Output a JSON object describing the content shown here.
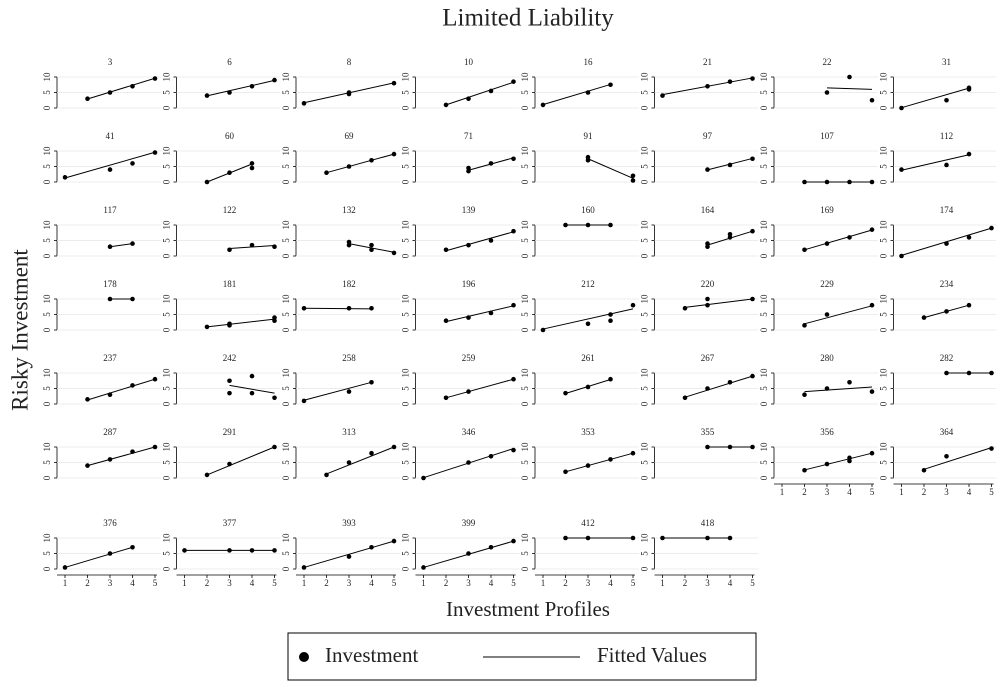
{
  "chart_data": {
    "type": "scatter",
    "title": "Limited Liability",
    "xlabel": "Investment Profiles",
    "ylabel": "Risky Investment",
    "legend": {
      "points": "Investment",
      "line": "Fitted Values"
    },
    "point_color": "#000000",
    "line_color": "#000000",
    "grid": true,
    "xlim": [
      1,
      5
    ],
    "xticks": [
      1,
      2,
      3,
      4,
      5
    ],
    "ylim": [
      0,
      10
    ],
    "yticks": [
      0,
      5,
      10
    ],
    "panels": [
      {
        "title": "3",
        "x": [
          2,
          3,
          4,
          5
        ],
        "values": [
          3,
          5,
          7,
          9.5
        ],
        "fit_x": [
          2,
          5
        ],
        "fit": [
          2.9,
          9.6
        ]
      },
      {
        "title": "6",
        "x": [
          2,
          3,
          4,
          5
        ],
        "values": [
          4,
          5,
          7,
          9
        ],
        "fit_x": [
          2,
          5
        ],
        "fit": [
          3.9,
          8.9
        ]
      },
      {
        "title": "8",
        "x": [
          1,
          3,
          3,
          5
        ],
        "values": [
          1.5,
          4.5,
          5,
          8
        ],
        "fit_x": [
          1,
          5
        ],
        "fit": [
          1.7,
          8.1
        ]
      },
      {
        "title": "10",
        "x": [
          2,
          3,
          4,
          5
        ],
        "values": [
          1,
          3,
          5.5,
          8.5
        ],
        "fit_x": [
          2,
          5
        ],
        "fit": [
          1,
          8.3
        ]
      },
      {
        "title": "16",
        "x": [
          1,
          3,
          4
        ],
        "values": [
          1,
          5,
          7.5
        ],
        "fit_x": [
          1,
          4
        ],
        "fit": [
          1.1,
          7.6
        ]
      },
      {
        "title": "21",
        "x": [
          1,
          3,
          4,
          5
        ],
        "values": [
          4,
          7,
          8.5,
          9.5
        ],
        "fit_x": [
          1,
          5
        ],
        "fit": [
          4.3,
          9.7
        ]
      },
      {
        "title": "22",
        "x": [
          3,
          4,
          5
        ],
        "values": [
          5,
          10,
          2.5
        ],
        "fit_x": [
          3,
          5
        ],
        "fit": [
          6.5,
          6
        ]
      },
      {
        "title": "31",
        "x": [
          1,
          3,
          4,
          4
        ],
        "values": [
          0,
          2.5,
          6,
          6.5
        ],
        "fit_x": [
          1,
          4
        ],
        "fit": [
          0.1,
          6.4
        ]
      },
      {
        "title": "41",
        "x": [
          1,
          3,
          4,
          5
        ],
        "values": [
          1.5,
          4,
          6,
          9.5
        ],
        "fit_x": [
          1,
          5
        ],
        "fit": [
          1.3,
          9.6
        ]
      },
      {
        "title": "60",
        "x": [
          2,
          3,
          4,
          4
        ],
        "values": [
          0,
          3,
          4.5,
          6
        ],
        "fit_x": [
          2,
          4
        ],
        "fit": [
          0,
          5.8
        ]
      },
      {
        "title": "69",
        "x": [
          2,
          3,
          4,
          5
        ],
        "values": [
          3,
          5,
          7,
          9
        ],
        "fit_x": [
          2,
          5
        ],
        "fit": [
          3,
          9
        ]
      },
      {
        "title": "71",
        "x": [
          3,
          3,
          4,
          5
        ],
        "values": [
          3.5,
          4.5,
          6,
          7.5
        ],
        "fit_x": [
          3,
          5
        ],
        "fit": [
          3.8,
          7.8
        ]
      },
      {
        "title": "91",
        "x": [
          3,
          3,
          5,
          5
        ],
        "values": [
          8,
          7,
          2,
          0.5
        ],
        "fit_x": [
          3,
          5
        ],
        "fit": [
          7.5,
          1.2
        ]
      },
      {
        "title": "97",
        "x": [
          3,
          4,
          5
        ],
        "values": [
          4,
          5.5,
          7.5
        ],
        "fit_x": [
          3,
          5
        ],
        "fit": [
          3.9,
          7.6
        ]
      },
      {
        "title": "107",
        "x": [
          2,
          3,
          4,
          5
        ],
        "values": [
          0,
          0,
          0,
          0
        ],
        "fit_x": [
          2,
          5
        ],
        "fit": [
          0,
          0
        ]
      },
      {
        "title": "112",
        "x": [
          1,
          3,
          4
        ],
        "values": [
          4,
          5.5,
          9
        ],
        "fit_x": [
          1,
          4
        ],
        "fit": [
          3.8,
          8.8
        ]
      },
      {
        "title": "117",
        "x": [
          3,
          4
        ],
        "values": [
          3,
          4
        ],
        "fit_x": [
          3,
          4
        ],
        "fit": [
          3,
          4
        ]
      },
      {
        "title": "122",
        "x": [
          3,
          4,
          5
        ],
        "values": [
          2,
          3.5,
          3
        ],
        "fit_x": [
          3,
          5
        ],
        "fit": [
          2.4,
          3.4
        ]
      },
      {
        "title": "132",
        "x": [
          3,
          3,
          4,
          4,
          5
        ],
        "values": [
          3.5,
          4.5,
          3.5,
          2,
          1
        ],
        "fit_x": [
          3,
          5
        ],
        "fit": [
          4,
          1.2
        ]
      },
      {
        "title": "139",
        "x": [
          2,
          3,
          4,
          5
        ],
        "values": [
          2,
          3.5,
          5,
          8
        ],
        "fit_x": [
          2,
          5
        ],
        "fit": [
          1.7,
          7.8
        ]
      },
      {
        "title": "160",
        "x": [
          2,
          3,
          4
        ],
        "values": [
          10,
          10,
          10
        ],
        "fit_x": [
          2,
          4
        ],
        "fit": [
          10,
          10
        ]
      },
      {
        "title": "164",
        "x": [
          3,
          3,
          4,
          4,
          5
        ],
        "values": [
          3,
          4,
          6,
          7,
          8
        ],
        "fit_x": [
          3,
          5
        ],
        "fit": [
          3.5,
          8
        ]
      },
      {
        "title": "169",
        "x": [
          2,
          3,
          4,
          5
        ],
        "values": [
          2,
          4,
          6,
          8.5
        ],
        "fit_x": [
          2,
          5
        ],
        "fit": [
          2,
          8.4
        ]
      },
      {
        "title": "174",
        "x": [
          1,
          3,
          4,
          5
        ],
        "values": [
          0,
          4,
          6,
          9
        ],
        "fit_x": [
          1,
          5
        ],
        "fit": [
          0.2,
          9
        ]
      },
      {
        "title": "178",
        "x": [
          3,
          4
        ],
        "values": [
          10,
          10
        ],
        "fit_x": [
          3,
          4
        ],
        "fit": [
          10,
          10
        ]
      },
      {
        "title": "181",
        "x": [
          2,
          3,
          3,
          5,
          5
        ],
        "values": [
          1,
          1.5,
          2,
          3,
          4
        ],
        "fit_x": [
          2,
          5
        ],
        "fit": [
          1,
          3.5
        ]
      },
      {
        "title": "182",
        "x": [
          1,
          3,
          4
        ],
        "values": [
          7,
          7,
          7
        ],
        "fit_x": [
          1,
          4
        ],
        "fit": [
          7,
          6.8
        ]
      },
      {
        "title": "196",
        "x": [
          2,
          3,
          4,
          5
        ],
        "values": [
          3,
          4,
          5.5,
          8
        ],
        "fit_x": [
          2,
          5
        ],
        "fit": [
          2.7,
          7.8
        ]
      },
      {
        "title": "212",
        "x": [
          1,
          3,
          4,
          4,
          5
        ],
        "values": [
          0,
          2,
          3,
          5,
          8
        ],
        "fit_x": [
          1,
          5
        ],
        "fit": [
          0.3,
          6.8
        ]
      },
      {
        "title": "220",
        "x": [
          2,
          3,
          3,
          5
        ],
        "values": [
          7,
          8,
          10,
          10
        ],
        "fit_x": [
          2,
          5
        ],
        "fit": [
          7.3,
          10
        ]
      },
      {
        "title": "229",
        "x": [
          2,
          3,
          5
        ],
        "values": [
          1.5,
          5,
          8
        ],
        "fit_x": [
          2,
          5
        ],
        "fit": [
          2,
          7.8
        ]
      },
      {
        "title": "234",
        "x": [
          2,
          3,
          4
        ],
        "values": [
          4,
          6,
          8
        ],
        "fit_x": [
          2,
          4
        ],
        "fit": [
          4,
          8
        ]
      },
      {
        "title": "237",
        "x": [
          2,
          3,
          4,
          5
        ],
        "values": [
          1.5,
          3,
          6,
          8
        ],
        "fit_x": [
          2,
          5
        ],
        "fit": [
          1.3,
          8
        ]
      },
      {
        "title": "242",
        "x": [
          3,
          3,
          4,
          4,
          5
        ],
        "values": [
          3.5,
          7.5,
          3.5,
          9,
          2
        ],
        "fit_x": [
          3,
          5
        ],
        "fit": [
          6,
          3.5
        ]
      },
      {
        "title": "258",
        "x": [
          1,
          3,
          4
        ],
        "values": [
          1,
          4,
          7
        ],
        "fit_x": [
          1,
          4
        ],
        "fit": [
          1.2,
          7
        ]
      },
      {
        "title": "259",
        "x": [
          2,
          3,
          5
        ],
        "values": [
          2,
          4,
          8
        ],
        "fit_x": [
          2,
          5
        ],
        "fit": [
          2,
          8
        ]
      },
      {
        "title": "261",
        "x": [
          2,
          3,
          4
        ],
        "values": [
          3.5,
          5.5,
          8
        ],
        "fit_x": [
          2,
          4
        ],
        "fit": [
          3.4,
          7.9
        ]
      },
      {
        "title": "267",
        "x": [
          2,
          3,
          4,
          5
        ],
        "values": [
          2,
          5,
          7,
          9
        ],
        "fit_x": [
          2,
          5
        ],
        "fit": [
          2.2,
          9
        ]
      },
      {
        "title": "280",
        "x": [
          2,
          3,
          4,
          5
        ],
        "values": [
          3,
          5,
          7,
          4
        ],
        "fit_x": [
          2,
          5
        ],
        "fit": [
          4,
          5.5
        ]
      },
      {
        "title": "282",
        "x": [
          3,
          4,
          5
        ],
        "values": [
          10,
          10,
          10
        ],
        "fit_x": [
          3,
          5
        ],
        "fit": [
          10,
          10
        ]
      },
      {
        "title": "287",
        "x": [
          2,
          3,
          4,
          5
        ],
        "values": [
          4,
          6,
          8.5,
          10
        ],
        "fit_x": [
          2,
          5
        ],
        "fit": [
          4,
          10
        ]
      },
      {
        "title": "291",
        "x": [
          2,
          3,
          5
        ],
        "values": [
          1,
          4.5,
          10
        ],
        "fit_x": [
          2,
          5
        ],
        "fit": [
          1,
          10
        ]
      },
      {
        "title": "313",
        "x": [
          2,
          3,
          4,
          5
        ],
        "values": [
          1,
          5,
          8,
          10
        ],
        "fit_x": [
          2,
          5
        ],
        "fit": [
          1.3,
          10
        ]
      },
      {
        "title": "346",
        "x": [
          1,
          3,
          4,
          5
        ],
        "values": [
          0,
          5,
          7,
          9
        ],
        "fit_x": [
          1,
          5
        ],
        "fit": [
          0.1,
          9.5
        ]
      },
      {
        "title": "353",
        "x": [
          2,
          3,
          4,
          5
        ],
        "values": [
          2,
          4,
          6,
          8
        ],
        "fit_x": [
          2,
          5
        ],
        "fit": [
          2,
          8
        ]
      },
      {
        "title": "355",
        "x": [
          3,
          4,
          5
        ],
        "values": [
          10,
          10,
          10
        ],
        "fit_x": [
          3,
          5
        ],
        "fit": [
          10,
          10
        ]
      },
      {
        "title": "356",
        "x": [
          2,
          3,
          4,
          4,
          5
        ],
        "values": [
          2.5,
          4.5,
          5.5,
          6.5,
          8
        ],
        "fit_x": [
          2,
          5
        ],
        "fit": [
          2.6,
          8
        ]
      },
      {
        "title": "364",
        "x": [
          2,
          3,
          5
        ],
        "values": [
          2.5,
          7,
          9.5
        ],
        "fit_x": [
          2,
          5
        ],
        "fit": [
          2.8,
          9.8
        ]
      },
      {
        "title": "376",
        "x": [
          1,
          3,
          4
        ],
        "values": [
          0.5,
          5,
          7
        ],
        "fit_x": [
          1,
          4
        ],
        "fit": [
          0.5,
          7
        ]
      },
      {
        "title": "377",
        "x": [
          1,
          3,
          4,
          5
        ],
        "values": [
          6,
          6,
          6,
          6
        ],
        "fit_x": [
          1,
          5
        ],
        "fit": [
          6,
          6
        ]
      },
      {
        "title": "393",
        "x": [
          1,
          3,
          4,
          5
        ],
        "values": [
          0.5,
          4,
          7,
          9
        ],
        "fit_x": [
          1,
          5
        ],
        "fit": [
          0.5,
          9
        ]
      },
      {
        "title": "399",
        "x": [
          1,
          3,
          4,
          5
        ],
        "values": [
          0.5,
          5,
          7,
          9
        ],
        "fit_x": [
          1,
          5
        ],
        "fit": [
          0.5,
          9
        ]
      },
      {
        "title": "412",
        "x": [
          2,
          3,
          5
        ],
        "values": [
          10,
          10,
          10
        ],
        "fit_x": [
          2,
          5
        ],
        "fit": [
          10,
          10
        ]
      },
      {
        "title": "418",
        "x": [
          1,
          3,
          4
        ],
        "values": [
          10,
          10,
          10
        ],
        "fit_x": [
          1,
          4
        ],
        "fit": [
          10,
          10
        ]
      }
    ]
  }
}
